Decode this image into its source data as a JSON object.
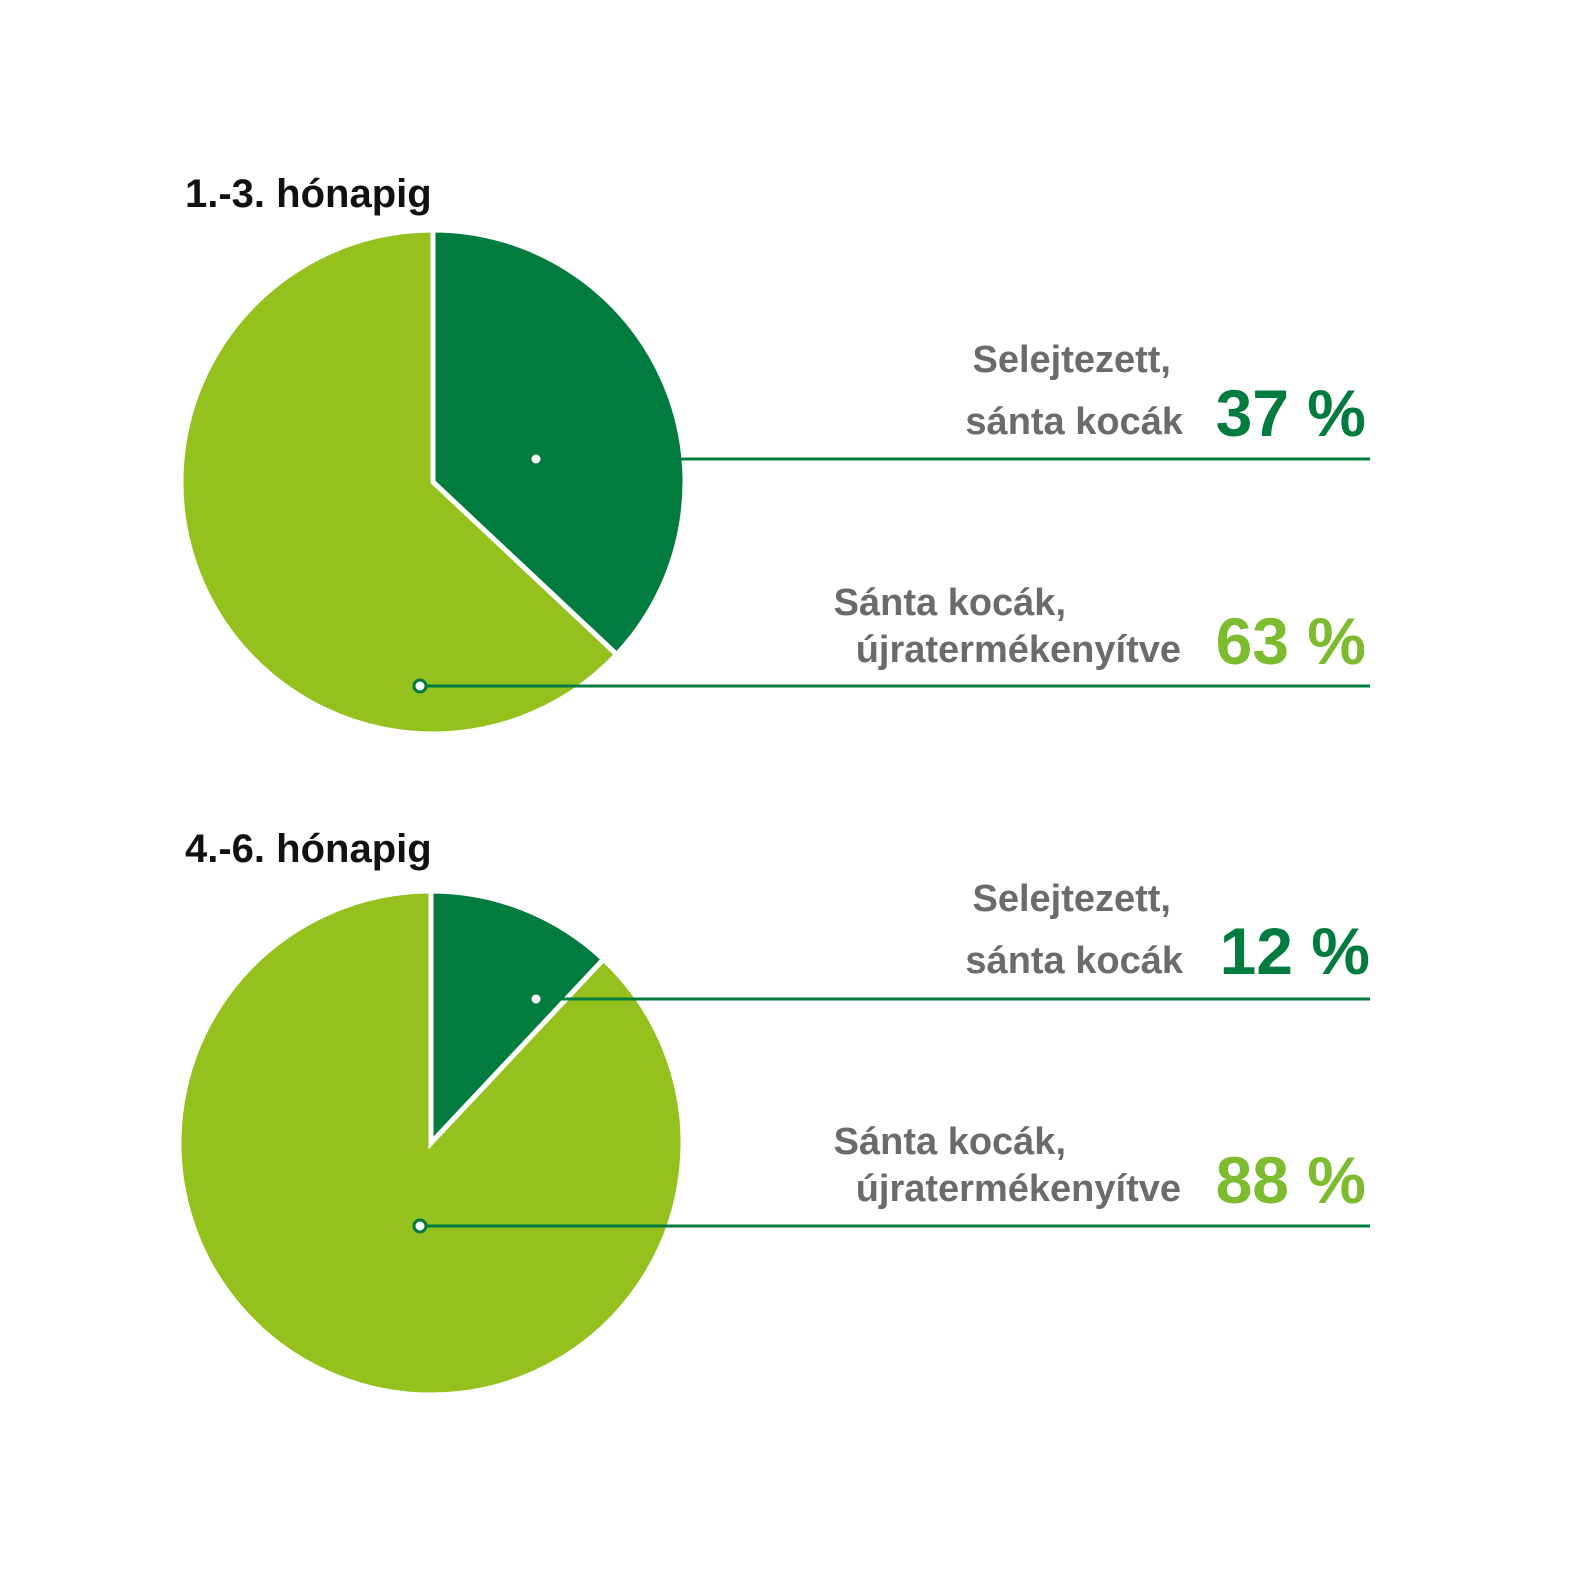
{
  "colors": {
    "dark_green": "#027c3e",
    "light_green": "#95c11f",
    "label_grey": "#6b6b6b",
    "leader_line": "#027c3e"
  },
  "chart_data": [
    {
      "type": "pie",
      "title": "1.-3. hónapig",
      "slices": [
        {
          "label_line1": "Selejtezett,",
          "label_line2": "sánta kocák",
          "value": 37,
          "value_label": "37 %",
          "color": "#027c3e"
        },
        {
          "label_line1": "Sánta kocák,",
          "label_line2": "újratermékenyítve",
          "value": 63,
          "value_label": "63 %",
          "color": "#95c11f"
        }
      ]
    },
    {
      "type": "pie",
      "title": "4.-6. hónapig",
      "slices": [
        {
          "label_line1": "Selejtezett,",
          "label_line2": "sánta kocák",
          "value": 12,
          "value_label": "12 %",
          "color": "#027c3e"
        },
        {
          "label_line1": "Sánta kocák,",
          "label_line2": "újratermékenyítve",
          "value": 88,
          "value_label": "88 %",
          "color": "#95c11f"
        }
      ]
    }
  ]
}
